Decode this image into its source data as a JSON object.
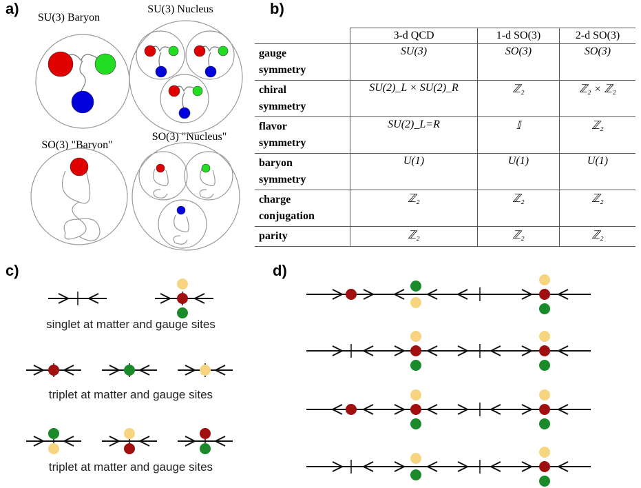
{
  "panel_labels": [
    "a)",
    "b)",
    "c)",
    "d)"
  ],
  "panel_a": {
    "titles": [
      "SU(3) Baryon",
      "SU(3) Nucleus",
      "SO(3) \"Baryon\"",
      "SO(3) \"Nucleus\""
    ]
  },
  "table": {
    "columns": [
      "3-d QCD",
      "1-d SO(3)",
      "2-d SO(3)"
    ],
    "rows": [
      {
        "label": "gauge symmetry",
        "cells": [
          "SU(3)",
          "SO(3)",
          "SO(3)"
        ]
      },
      {
        "label": "chiral symmetry",
        "cells": [
          "SU(2)_L × SU(2)_R",
          "ℤ₂",
          "ℤ₂ × ℤ₂"
        ]
      },
      {
        "label": "flavor symmetry",
        "cells": [
          "SU(2)_L=R",
          "𝕀",
          "ℤ₂"
        ]
      },
      {
        "label": "baryon symmetry",
        "cells": [
          "U(1)",
          "U(1)",
          "U(1)"
        ]
      },
      {
        "label": "charge conjugation",
        "cells": [
          "ℤ₂",
          "ℤ₂",
          "ℤ₂"
        ]
      },
      {
        "label": "parity",
        "cells": [
          "ℤ₂",
          "ℤ₂",
          "ℤ₂"
        ]
      }
    ]
  },
  "panel_c": {
    "captions": [
      "singlet at matter and gauge sites",
      "triplet at matter and gauge sites",
      "triplet at matter and gauge sites"
    ]
  }
}
